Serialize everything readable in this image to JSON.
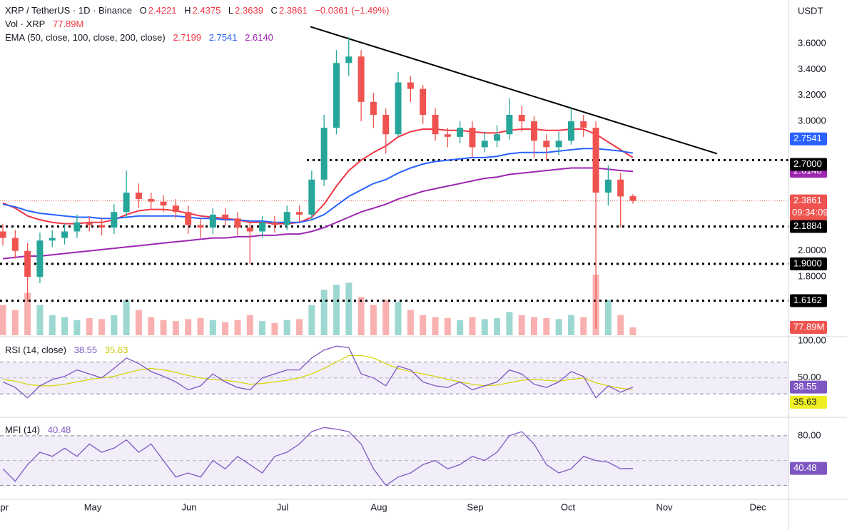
{
  "chart_data": {
    "type": "candlestick",
    "legend": {
      "symbol": "XRP / TetherUS · 1D · Binance",
      "ohlc_letters": [
        "O",
        "H",
        "L",
        "C"
      ],
      "change": "−0.0361 (−1.49%)",
      "volume_title": "Vol · XRP",
      "volume_label": "77.89M",
      "ema_title": "EMA (50, close, 100, close, 200, close)",
      "rsi_title": "RSI (14, close)",
      "mfi_title": "MFI (14)",
      "countdown": "09:34:09"
    },
    "currency": "USDT",
    "months": [
      "Apr",
      "May",
      "Jun",
      "Jul",
      "Aug",
      "Sep",
      "Oct",
      "Nov",
      "Dec"
    ],
    "up_color": "#26a69a",
    "down_color": "#ef5350",
    "ylim": [
      1.349,
      3.936
    ],
    "yticks": [
      {
        "value": 3.6,
        "label": "3.6000"
      },
      {
        "value": 3.4,
        "label": "3.4000"
      },
      {
        "value": 3.2,
        "label": "3.2000"
      },
      {
        "value": 3.0,
        "label": "3.0000"
      },
      {
        "value": 2.0,
        "label": "2.0000"
      },
      {
        "value": 1.8,
        "label": "1.8000"
      }
    ],
    "candles": {
      "open": [
        2.15,
        2.1,
        2.0,
        1.8,
        2.08,
        2.1,
        2.15,
        2.22,
        2.2,
        2.18,
        2.3,
        2.45,
        2.4,
        2.38,
        2.35,
        2.3,
        2.2,
        2.18,
        2.28,
        2.25,
        2.18,
        2.15,
        2.22,
        2.2,
        2.3,
        2.28,
        2.55,
        2.95,
        3.45,
        3.5,
        3.15,
        3.05,
        2.9,
        3.3,
        3.25,
        3.05,
        2.9,
        2.88,
        2.95,
        2.8,
        2.85,
        2.9,
        3.05,
        3.0,
        2.85,
        2.8,
        2.85,
        3.0,
        2.95,
        2.45,
        2.55,
        2.4221
      ],
      "high": [
        2.21,
        2.16,
        2.06,
        2.14,
        2.16,
        2.21,
        2.28,
        2.27,
        2.25,
        2.36,
        2.62,
        2.52,
        2.45,
        2.43,
        2.4,
        2.35,
        2.25,
        2.33,
        2.33,
        2.3,
        2.23,
        2.27,
        2.27,
        2.35,
        2.35,
        2.62,
        3.05,
        3.55,
        3.65,
        3.55,
        3.22,
        3.1,
        3.38,
        3.35,
        3.28,
        3.1,
        2.95,
        3.0,
        3.0,
        2.92,
        2.97,
        3.18,
        3.12,
        3.04,
        2.9,
        2.92,
        3.1,
        3.05,
        3.0,
        2.66,
        2.6,
        2.4375
      ],
      "low": [
        2.04,
        1.94,
        1.61,
        1.75,
        2.03,
        2.05,
        2.1,
        2.15,
        2.12,
        2.13,
        2.25,
        2.33,
        2.32,
        2.3,
        2.25,
        2.13,
        2.1,
        2.13,
        2.19,
        2.12,
        1.9,
        2.1,
        2.14,
        2.16,
        2.22,
        2.24,
        2.5,
        2.9,
        3.35,
        3.0,
        2.95,
        2.75,
        2.88,
        3.15,
        2.98,
        2.85,
        2.8,
        2.83,
        2.72,
        2.76,
        2.8,
        2.86,
        2.92,
        2.72,
        2.7,
        2.74,
        2.82,
        2.88,
        1.4,
        2.35,
        2.18,
        2.3639
      ],
      "close": [
        2.1,
        2.0,
        1.8,
        2.08,
        2.1,
        2.15,
        2.22,
        2.2,
        2.18,
        2.3,
        2.45,
        2.4,
        2.38,
        2.35,
        2.3,
        2.2,
        2.18,
        2.28,
        2.25,
        2.18,
        2.15,
        2.22,
        2.2,
        2.3,
        2.28,
        2.55,
        2.95,
        3.45,
        3.5,
        3.15,
        3.05,
        2.9,
        3.3,
        3.25,
        3.05,
        2.9,
        2.88,
        2.95,
        2.8,
        2.85,
        2.9,
        3.05,
        3.0,
        2.85,
        2.8,
        2.85,
        3.0,
        2.95,
        2.45,
        2.55,
        2.42,
        2.3861
      ],
      "volume": [
        300,
        250,
        420,
        300,
        200,
        180,
        150,
        170,
        160,
        200,
        350,
        250,
        180,
        150,
        140,
        160,
        170,
        150,
        130,
        150,
        200,
        140,
        120,
        150,
        160,
        300,
        450,
        500,
        520,
        380,
        300,
        350,
        330,
        250,
        200,
        180,
        170,
        150,
        180,
        160,
        170,
        230,
        200,
        180,
        170,
        160,
        200,
        180,
        600,
        350,
        200,
        77.89
      ]
    },
    "series": [
      {
        "name": "EMA 50",
        "color": "#f23645",
        "last_label": "2.7199",
        "values": [
          2.37,
          2.33,
          2.27,
          2.24,
          2.22,
          2.21,
          2.21,
          2.22,
          2.22,
          2.24,
          2.28,
          2.31,
          2.32,
          2.32,
          2.31,
          2.29,
          2.27,
          2.26,
          2.25,
          2.24,
          2.22,
          2.22,
          2.21,
          2.21,
          2.22,
          2.26,
          2.36,
          2.5,
          2.62,
          2.7,
          2.76,
          2.81,
          2.88,
          2.92,
          2.94,
          2.94,
          2.93,
          2.93,
          2.92,
          2.91,
          2.91,
          2.93,
          2.94,
          2.94,
          2.93,
          2.93,
          2.94,
          2.94,
          2.9,
          2.84,
          2.78,
          2.7199
        ]
      },
      {
        "name": "EMA 100",
        "color": "#2962ff",
        "last_label": "2.7541",
        "values": [
          2.36,
          2.34,
          2.31,
          2.29,
          2.28,
          2.27,
          2.26,
          2.26,
          2.25,
          2.25,
          2.26,
          2.27,
          2.27,
          2.27,
          2.27,
          2.26,
          2.25,
          2.25,
          2.24,
          2.24,
          2.23,
          2.23,
          2.22,
          2.22,
          2.22,
          2.24,
          2.28,
          2.35,
          2.42,
          2.47,
          2.52,
          2.55,
          2.6,
          2.64,
          2.67,
          2.69,
          2.7,
          2.71,
          2.72,
          2.72,
          2.73,
          2.75,
          2.76,
          2.76,
          2.76,
          2.77,
          2.78,
          2.79,
          2.79,
          2.78,
          2.77,
          2.7541
        ]
      },
      {
        "name": "EMA 200",
        "color": "#9c27b0",
        "last_label": "2.6140",
        "values": [
          1.94,
          1.95,
          1.96,
          1.96,
          1.97,
          1.98,
          1.99,
          2.0,
          2.01,
          2.02,
          2.03,
          2.04,
          2.05,
          2.06,
          2.07,
          2.08,
          2.09,
          2.1,
          2.1,
          2.11,
          2.11,
          2.12,
          2.12,
          2.13,
          2.13,
          2.15,
          2.18,
          2.22,
          2.26,
          2.3,
          2.33,
          2.36,
          2.4,
          2.43,
          2.46,
          2.48,
          2.5,
          2.52,
          2.54,
          2.56,
          2.57,
          2.59,
          2.6,
          2.61,
          2.62,
          2.63,
          2.64,
          2.64,
          2.64,
          2.63,
          2.62,
          2.614
        ]
      }
    ],
    "levels": [
      {
        "value": 2.7,
        "label": "2.7000"
      },
      2.1884,
      {
        "value": 1.9,
        "label": "1.9000"
      },
      1.6162
    ],
    "trendline": [
      3.73,
      2.75
    ],
    "rsi": {
      "color": "#7e57c2",
      "ma_color": "#d4d400",
      "ylim": [
        5,
        100
      ],
      "yticks": [
        {
          "value": 100,
          "label": "100.00"
        },
        {
          "value": 50,
          "label": "50.00"
        }
      ],
      "levels": [
        70,
        50,
        30
      ],
      "values": [
        45,
        38,
        25,
        40,
        48,
        52,
        60,
        55,
        50,
        62,
        75,
        68,
        58,
        52,
        45,
        35,
        40,
        55,
        45,
        38,
        35,
        50,
        55,
        60,
        60,
        75,
        85,
        90,
        88,
        55,
        50,
        40,
        65,
        60,
        45,
        40,
        38,
        45,
        35,
        40,
        45,
        60,
        55,
        42,
        38,
        45,
        58,
        52,
        25,
        40,
        32,
        38.55
      ],
      "ma": [
        48,
        46,
        42,
        40,
        40,
        42,
        45,
        48,
        50,
        52,
        56,
        60,
        62,
        60,
        57,
        53,
        50,
        48,
        47,
        45,
        42,
        43,
        45,
        47,
        50,
        55,
        62,
        70,
        78,
        78,
        75,
        68,
        62,
        58,
        55,
        52,
        48,
        45,
        42,
        40,
        41,
        44,
        47,
        48,
        47,
        46,
        48,
        50,
        44,
        40,
        37,
        35.63
      ]
    },
    "mfi": {
      "color": "#7e57c2",
      "ylim": [
        10,
        98
      ],
      "yticks": [
        {
          "value": 80,
          "label": "80.00"
        }
      ],
      "levels": [
        80,
        50,
        20
      ],
      "values": [
        40,
        25,
        45,
        60,
        55,
        65,
        55,
        70,
        60,
        65,
        75,
        60,
        70,
        50,
        30,
        35,
        30,
        50,
        40,
        55,
        45,
        35,
        55,
        60,
        70,
        85,
        90,
        88,
        85,
        70,
        40,
        20,
        30,
        35,
        45,
        50,
        40,
        45,
        55,
        50,
        60,
        80,
        85,
        70,
        45,
        35,
        40,
        55,
        50,
        48,
        40,
        40.48
      ]
    }
  }
}
